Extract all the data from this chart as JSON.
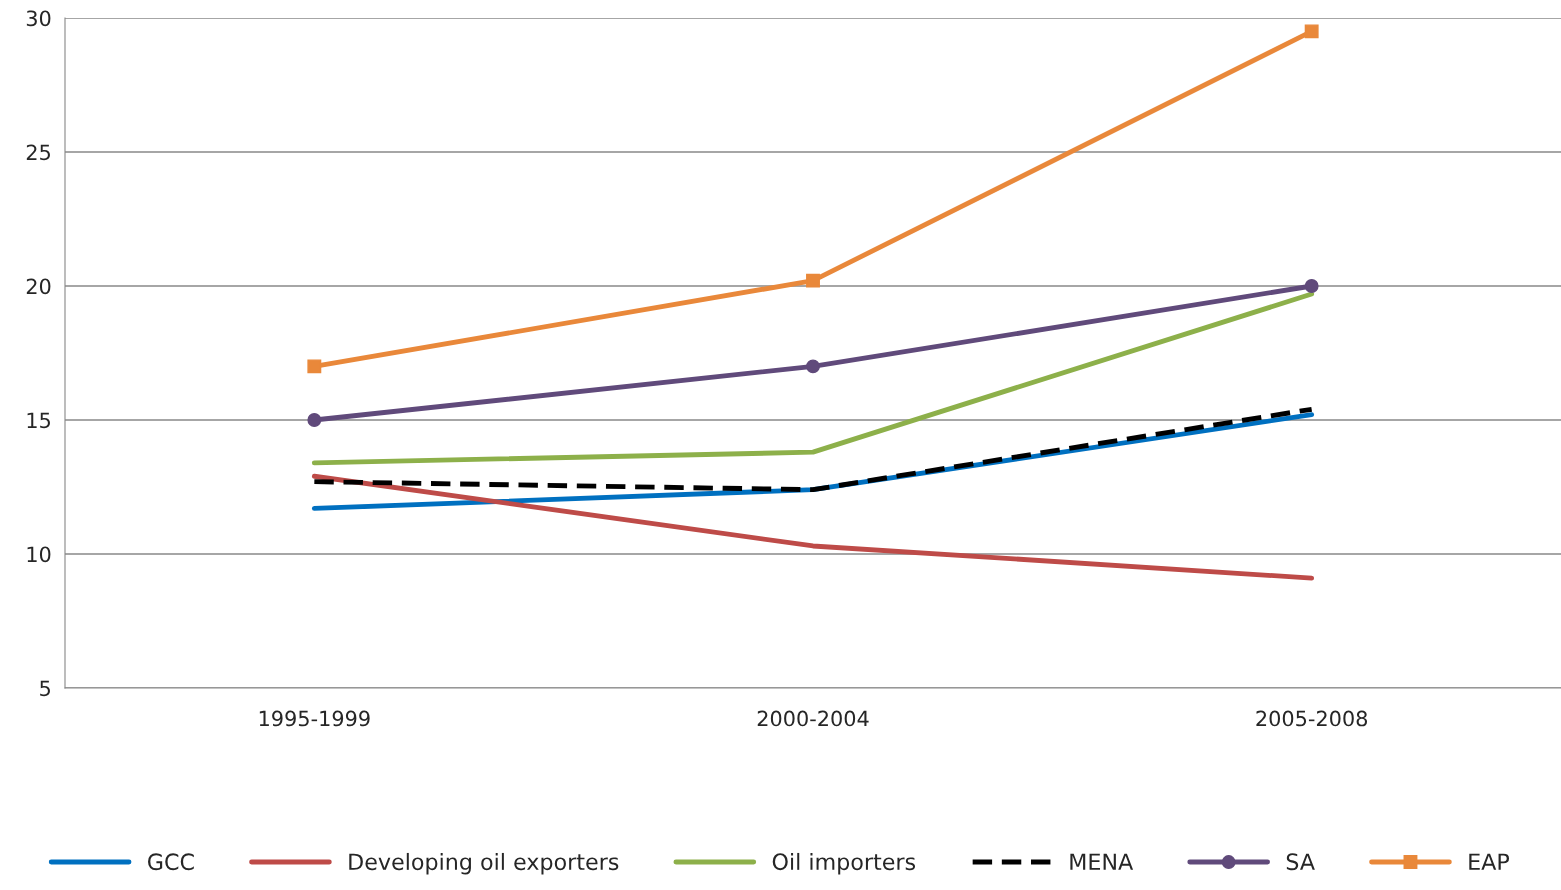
{
  "chart_data": {
    "type": "line",
    "categories": [
      "1995-1999",
      "2000-2004",
      "2005-2008"
    ],
    "series": [
      {
        "name": "GCC",
        "color": "#0070c0",
        "values": [
          11.7,
          12.4,
          15.2
        ]
      },
      {
        "name": "Developing oil exporters",
        "color": "#be4b48",
        "values": [
          12.9,
          10.3,
          9.1
        ]
      },
      {
        "name": "Oil importers",
        "color": "#8db04a",
        "values": [
          13.4,
          13.8,
          19.7
        ]
      },
      {
        "name": "MENA",
        "color": "#000000",
        "values": [
          12.7,
          12.4,
          15.4
        ],
        "line_style": "dashed"
      },
      {
        "name": "SA",
        "color": "#604a7b",
        "values": [
          15,
          17,
          20
        ],
        "marker": "circle"
      },
      {
        "name": "EAP",
        "color": "#e9883a",
        "values": [
          17,
          20.2,
          29.5
        ],
        "marker": "square"
      }
    ],
    "ylim": [
      5,
      30
    ],
    "yticks": [
      5,
      10,
      15,
      20,
      25,
      30
    ],
    "grid": "y",
    "legend": "bottom"
  }
}
